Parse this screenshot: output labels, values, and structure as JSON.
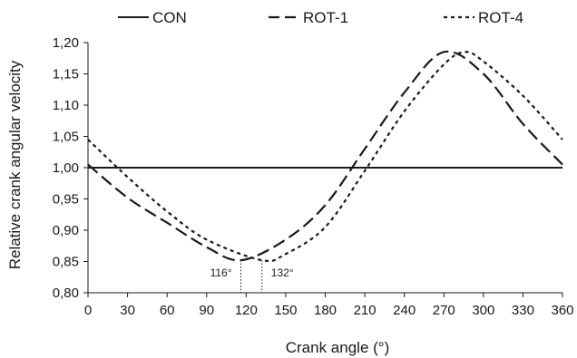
{
  "chart_data": {
    "type": "line",
    "title": "",
    "xlabel": "Crank angle (°)",
    "ylabel": "Relative crank angular velocity",
    "xlim": [
      0,
      360
    ],
    "ylim": [
      0.8,
      1.2
    ],
    "x_ticks": [
      "0",
      "30",
      "60",
      "90",
      "120",
      "150",
      "180",
      "210",
      "240",
      "270",
      "300",
      "330",
      "360"
    ],
    "y_ticks": [
      "0,80",
      "0,85",
      "0,90",
      "0,95",
      "1,00",
      "1,05",
      "1,10",
      "1,15",
      "1,20"
    ],
    "grid": false,
    "legend_position": "top",
    "series": [
      {
        "name": "CON",
        "style": "solid",
        "x": [
          0,
          360
        ],
        "y": [
          1.0,
          1.0
        ]
      },
      {
        "name": "ROT-1",
        "style": "dashed",
        "x": [
          0,
          30,
          60,
          90,
          116,
          150,
          180,
          210,
          240,
          270,
          300,
          330,
          360
        ],
        "y": [
          1.005,
          0.952,
          0.912,
          0.873,
          0.852,
          0.885,
          0.94,
          1.03,
          1.12,
          1.185,
          1.15,
          1.07,
          1.005
        ]
      },
      {
        "name": "ROT-4",
        "style": "dotted",
        "x": [
          0,
          30,
          60,
          90,
          132,
          150,
          180,
          210,
          240,
          270,
          286,
          300,
          330,
          360
        ],
        "y": [
          1.045,
          0.985,
          0.93,
          0.885,
          0.852,
          0.862,
          0.905,
          0.995,
          1.09,
          1.165,
          1.185,
          1.17,
          1.115,
          1.045
        ]
      }
    ],
    "annotations": [
      {
        "text": "116°",
        "x": 116
      },
      {
        "text": "132°",
        "x": 132
      }
    ]
  }
}
